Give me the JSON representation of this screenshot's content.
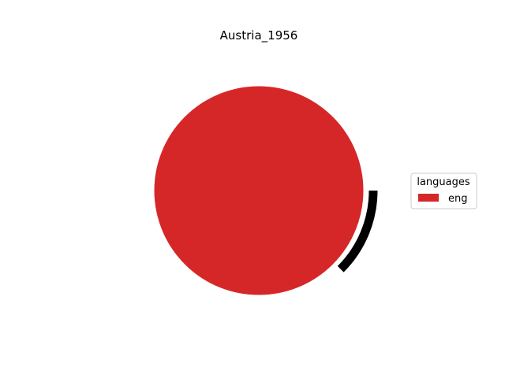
{
  "chart_data": {
    "type": "pie",
    "title": "Austria_1956",
    "slices": [
      {
        "label": "eng",
        "value": 100,
        "color": "#d62728"
      },
      {
        "label": "",
        "value": 0,
        "color": "#000000"
      }
    ],
    "legend": {
      "title": "languages",
      "placement": "right",
      "entries": [
        {
          "label": "eng",
          "color": "#d62728"
        }
      ]
    }
  }
}
